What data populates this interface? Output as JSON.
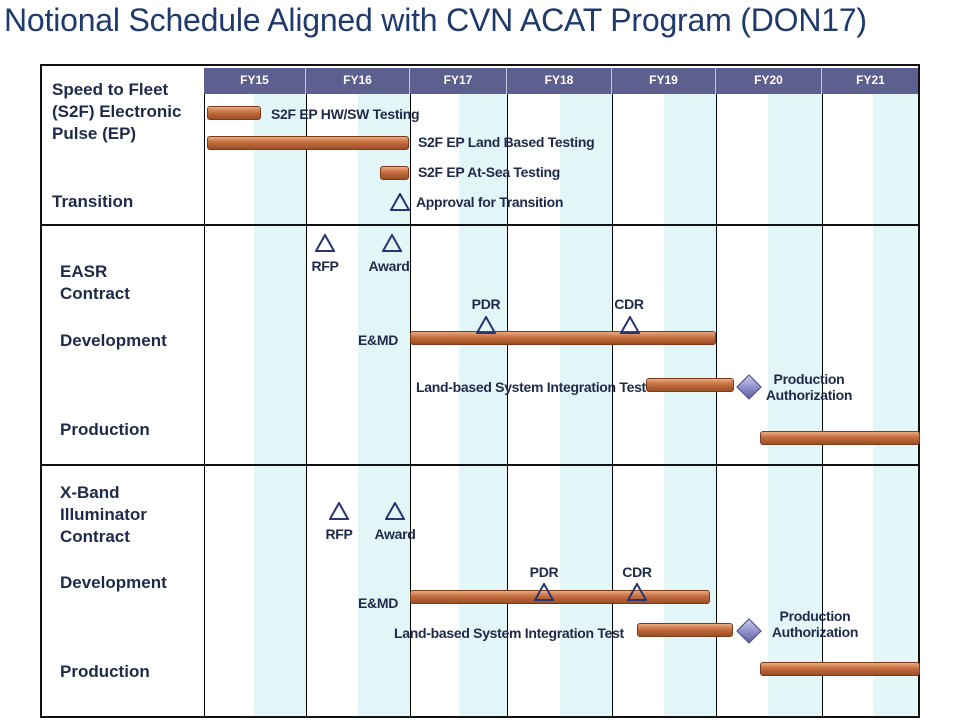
{
  "title": "Notional Schedule Aligned with CVN ACAT Program (DON17)",
  "fiscal_years": [
    "FY15",
    "FY16",
    "FY17",
    "FY18",
    "FY19",
    "FY20",
    "FY21"
  ],
  "colors": {
    "header_fill": "#5d5f8e",
    "stripe": "#e3f6f7",
    "bar": "#c46d3f",
    "milestone_outline": "#2a3470",
    "title": "#1f3a6b"
  },
  "sections": {
    "s2f": {
      "label_lines": [
        "Speed to Fleet",
        "(S2F) Electronic",
        "Pulse (EP)"
      ],
      "transition_label": "Transition",
      "tasks": {
        "hwsw": "S2F EP HW/SW Testing",
        "land": "S2F EP Land Based Testing",
        "sea": "S2F EP At-Sea Testing",
        "approval": "Approval for Transition"
      }
    },
    "easr": {
      "label_lines": [
        "EASR",
        "Contract"
      ],
      "development_label": "Development",
      "production_label": "Production",
      "rfp": "RFP",
      "award": "Award",
      "pdr": "PDR",
      "cdr": "CDR",
      "emd": "E&MD",
      "lbsit": "Land-based System Integration Test",
      "prod_auth_lines": [
        "Production",
        "Authorization"
      ]
    },
    "xband": {
      "label_lines": [
        "X-Band",
        "Illuminator",
        "Contract"
      ],
      "development_label": "Development",
      "production_label": "Production",
      "rfp": "RFP",
      "award": "Award",
      "pdr": "PDR",
      "cdr": "CDR",
      "emd": "E&MD",
      "lbsit": "Land-based System Integration Test",
      "prod_auth_lines": [
        "Production",
        "Authorization"
      ]
    }
  }
}
